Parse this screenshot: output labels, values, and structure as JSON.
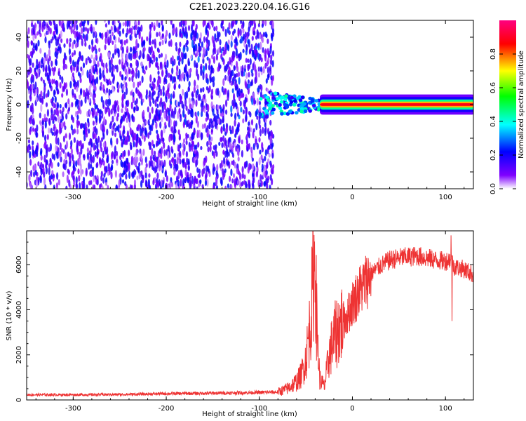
{
  "title": "C2E1.2023.220.04.16.G16",
  "chart_data": [
    {
      "type": "heatmap",
      "xlabel": "Height of straight line (km)",
      "ylabel": "Frequency (Hz)",
      "xlim": [
        -350,
        130
      ],
      "ylim": [
        -50,
        50
      ],
      "xticks": [
        -300,
        -200,
        -100,
        0,
        100
      ],
      "yticks": [
        -40,
        -20,
        0,
        20,
        40
      ],
      "colorbar": {
        "label": "Normalized spectral amplitude",
        "range": [
          0,
          1
        ],
        "ticks": [
          0.0,
          0.2,
          0.4,
          0.6,
          0.8
        ],
        "colors": [
          "#ffffff",
          "#8000ff",
          "#0000ff",
          "#00ffff",
          "#00ff00",
          "#ffff00",
          "#ff0000",
          "#ff0080"
        ]
      },
      "features": [
        {
          "name": "tone",
          "x_range": [
            -35,
            130
          ],
          "frequency": 0,
          "amplitude": 0.85
        },
        {
          "name": "transition",
          "x_range": [
            -100,
            -35
          ],
          "frequency_range": [
            -10,
            10
          ],
          "amplitude": 0.4
        },
        {
          "name": "noise",
          "x_range": [
            -350,
            -85
          ],
          "frequency_range": [
            -50,
            50
          ],
          "amplitude": 0.12
        }
      ]
    },
    {
      "type": "line",
      "xlabel": "Height of straight line (km)",
      "ylabel": "SNR (10 * v/v)",
      "xlim": [
        -350,
        130
      ],
      "ylim": [
        0,
        7500
      ],
      "xticks": [
        -300,
        -200,
        -100,
        0,
        100
      ],
      "yticks": [
        0,
        2000,
        4000,
        6000
      ],
      "color": "#ee3333",
      "series": [
        {
          "x": [
            -350,
            -300,
            -250,
            -200,
            -150,
            -100,
            -80,
            -70,
            -60,
            -55,
            -50,
            -45,
            -42,
            -40,
            -38,
            -35,
            -30,
            -25,
            -20,
            -15,
            -10,
            -5,
            0,
            10,
            20,
            30,
            40,
            50,
            60,
            70,
            80,
            90,
            100,
            105,
            110,
            120,
            130
          ],
          "y": [
            230,
            230,
            240,
            280,
            300,
            330,
            350,
            500,
            800,
            1100,
            1800,
            3500,
            5500,
            6200,
            3000,
            900,
            600,
            2000,
            2700,
            3200,
            3500,
            3800,
            4300,
            5000,
            5600,
            5950,
            6200,
            6300,
            6350,
            6380,
            6300,
            6200,
            6150,
            6250,
            5900,
            5800,
            5550
          ]
        }
      ],
      "annotations": [
        {
          "x": 106,
          "y": 7300,
          "note": "spike"
        },
        {
          "x": 107,
          "y": 3500,
          "note": "dip"
        }
      ]
    }
  ]
}
